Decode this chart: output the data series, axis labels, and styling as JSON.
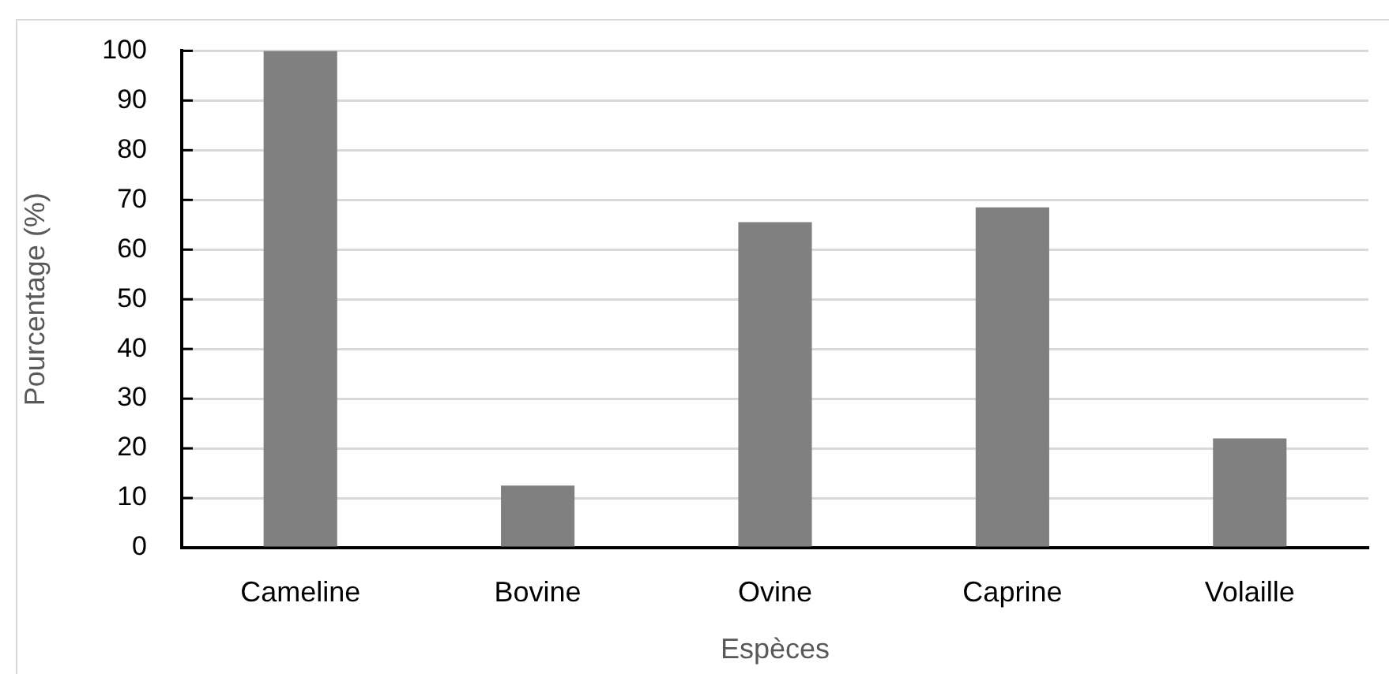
{
  "chart_data": {
    "type": "bar",
    "xlabel": "Espèces",
    "ylabel": "Pourcentage (%)",
    "categories": [
      "Cameline",
      "Bovine",
      "Ovine",
      "Caprine",
      "Volaille"
    ],
    "values": [
      100,
      12.5,
      65.5,
      68.5,
      22
    ],
    "color": "#808080",
    "ylim": [
      0,
      100
    ],
    "yticks": [
      0,
      10,
      20,
      30,
      40,
      50,
      60,
      70,
      80,
      90,
      100
    ],
    "grid": "y"
  }
}
